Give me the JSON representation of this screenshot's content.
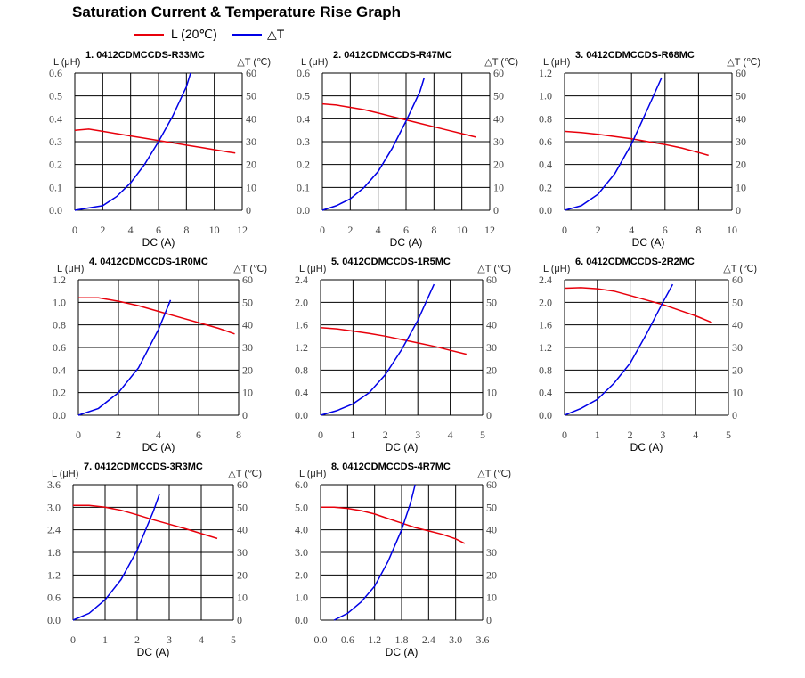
{
  "title": "Saturation Current & Temperature Rise  Graph",
  "legend": [
    {
      "label": "L (20℃)",
      "color": "#e8000b"
    },
    {
      "label": "△T",
      "color": "#0000e6"
    }
  ],
  "colors": {
    "inductance": "#e8000b",
    "temperature": "#0000e6",
    "grid": "#000000"
  },
  "chart_data": [
    {
      "type": "line",
      "title": "1. 0412CDMCCDS-R33MC",
      "xlabel": "DC (A)",
      "ylabel": "L (μH)",
      "y2label": "△T (℃)",
      "xlim": [
        0,
        12
      ],
      "ylim": [
        0,
        0.6
      ],
      "y2lim": [
        0,
        60
      ],
      "xticks": [
        "0",
        "2",
        "4",
        "6",
        "8",
        "10",
        "12"
      ],
      "yticks": [
        "0.0",
        "0.1",
        "0.2",
        "0.3",
        "0.4",
        "0.5",
        "0.6"
      ],
      "y2ticks": [
        "0",
        "10",
        "20",
        "30",
        "40",
        "50",
        "60"
      ],
      "grid": true,
      "series": [
        {
          "name": "L (20℃)",
          "axis": "left",
          "x": [
            0,
            1,
            2,
            3,
            4,
            5,
            6,
            7,
            8,
            9,
            10,
            11,
            11.5
          ],
          "y": [
            0.35,
            0.355,
            0.345,
            0.335,
            0.325,
            0.315,
            0.305,
            0.295,
            0.285,
            0.275,
            0.265,
            0.255,
            0.25
          ]
        },
        {
          "name": "△T",
          "axis": "right",
          "x": [
            0,
            1,
            2,
            3,
            4,
            5,
            6,
            7,
            8,
            8.3
          ],
          "y": [
            0,
            1,
            2,
            6,
            12,
            20,
            30,
            41,
            54,
            60
          ]
        }
      ]
    },
    {
      "type": "line",
      "title": "2. 0412CDMCCDS-R47MC",
      "xlabel": "DC (A)",
      "ylabel": "L (μH)",
      "y2label": "△T (℃)",
      "xlim": [
        0,
        12
      ],
      "ylim": [
        0,
        0.6
      ],
      "y2lim": [
        0,
        60
      ],
      "xticks": [
        "0",
        "2",
        "4",
        "6",
        "8",
        "10",
        "12"
      ],
      "yticks": [
        "0.0",
        "0.1",
        "0.2",
        "0.3",
        "0.4",
        "0.5",
        "0.6"
      ],
      "y2ticks": [
        "0",
        "10",
        "20",
        "30",
        "40",
        "50",
        "60"
      ],
      "grid": true,
      "series": [
        {
          "name": "L (20℃)",
          "axis": "left",
          "x": [
            0,
            1,
            2,
            3,
            4,
            5,
            6,
            7,
            8,
            9,
            10,
            11
          ],
          "y": [
            0.465,
            0.46,
            0.45,
            0.44,
            0.425,
            0.41,
            0.395,
            0.38,
            0.365,
            0.35,
            0.335,
            0.32
          ]
        },
        {
          "name": "△T",
          "axis": "right",
          "x": [
            0,
            1,
            2,
            3,
            4,
            5,
            6,
            7,
            7.3
          ],
          "y": [
            0,
            2,
            5,
            10,
            17,
            27,
            39,
            52,
            58
          ]
        }
      ]
    },
    {
      "type": "line",
      "title": "3. 0412CDMCCDS-R68MC",
      "xlabel": "DC (A)",
      "ylabel": "L (μH)",
      "y2label": "△T (℃)",
      "xlim": [
        0,
        10
      ],
      "ylim": [
        0,
        1.2
      ],
      "y2lim": [
        0,
        60
      ],
      "xticks": [
        "0",
        "2",
        "4",
        "6",
        "8",
        "10"
      ],
      "yticks": [
        "0.0",
        "0.2",
        "0.4",
        "0.6",
        "0.8",
        "1.0",
        "1.2"
      ],
      "y2ticks": [
        "0",
        "10",
        "20",
        "30",
        "40",
        "50",
        "60"
      ],
      "grid": true,
      "series": [
        {
          "name": "L (20℃)",
          "axis": "left",
          "x": [
            0,
            1,
            2,
            3,
            4,
            5,
            6,
            7,
            8,
            8.6
          ],
          "y": [
            0.69,
            0.68,
            0.665,
            0.645,
            0.625,
            0.6,
            0.575,
            0.545,
            0.505,
            0.48
          ]
        },
        {
          "name": "△T",
          "axis": "right",
          "x": [
            0,
            1,
            2,
            3,
            4,
            5,
            5.8
          ],
          "y": [
            0,
            2,
            7,
            16,
            29,
            45,
            58
          ]
        }
      ]
    },
    {
      "type": "line",
      "title": "4. 0412CDMCCDS-1R0MC",
      "xlabel": "DC (A)",
      "ylabel": "L (μH)",
      "y2label": "△T (℃)",
      "xlim": [
        0,
        8
      ],
      "ylim": [
        0,
        1.2
      ],
      "y2lim": [
        0,
        60
      ],
      "xticks": [
        "0",
        "2",
        "4",
        "6",
        "8"
      ],
      "yticks": [
        "0.0",
        "0.2",
        "0.4",
        "0.6",
        "0.8",
        "1.0",
        "1.2"
      ],
      "y2ticks": [
        "0",
        "10",
        "20",
        "30",
        "40",
        "50",
        "60"
      ],
      "grid": true,
      "series": [
        {
          "name": "L (20℃)",
          "axis": "left",
          "x": [
            0,
            1,
            2,
            3,
            4,
            5,
            6,
            7,
            7.8
          ],
          "y": [
            1.04,
            1.04,
            1.01,
            0.97,
            0.92,
            0.87,
            0.82,
            0.77,
            0.72
          ]
        },
        {
          "name": "△T",
          "axis": "right",
          "x": [
            0,
            1,
            2,
            3,
            4,
            4.6
          ],
          "y": [
            0,
            3,
            10,
            21,
            38,
            51
          ]
        }
      ]
    },
    {
      "type": "line",
      "title": "5. 0412CDMCCDS-1R5MC",
      "xlabel": "DC (A)",
      "ylabel": "L (μH)",
      "y2label": "△T (℃)",
      "xlim": [
        0,
        5
      ],
      "ylim": [
        0,
        2.4
      ],
      "y2lim": [
        0,
        60
      ],
      "xticks": [
        "0",
        "1",
        "2",
        "3",
        "4",
        "5"
      ],
      "yticks": [
        "0.0",
        "0.4",
        "0.8",
        "1.2",
        "1.6",
        "2.0",
        "2.4"
      ],
      "y2ticks": [
        "0",
        "10",
        "20",
        "30",
        "40",
        "50",
        "60"
      ],
      "grid": true,
      "series": [
        {
          "name": "L (20℃)",
          "axis": "left",
          "x": [
            0,
            0.5,
            1,
            1.5,
            2,
            2.5,
            3,
            3.5,
            4,
            4.5
          ],
          "y": [
            1.55,
            1.53,
            1.49,
            1.45,
            1.4,
            1.34,
            1.28,
            1.22,
            1.15,
            1.08
          ]
        },
        {
          "name": "△T",
          "axis": "right",
          "x": [
            0,
            0.5,
            1,
            1.5,
            2,
            2.5,
            3,
            3.5
          ],
          "y": [
            0,
            2,
            5,
            10,
            18,
            29,
            42,
            58
          ]
        }
      ]
    },
    {
      "type": "line",
      "title": "6. 0412CDMCCDS-2R2MC",
      "xlabel": "DC (A)",
      "ylabel": "L (μH)",
      "y2label": "△T (℃)",
      "xlim": [
        0,
        5
      ],
      "ylim": [
        0,
        2.4
      ],
      "y2lim": [
        0,
        60
      ],
      "xticks": [
        "0",
        "1",
        "2",
        "3",
        "4",
        "5"
      ],
      "yticks": [
        "0.0",
        "0.4",
        "0.8",
        "1.2",
        "1.6",
        "2.0",
        "2.4"
      ],
      "y2ticks": [
        "0",
        "10",
        "20",
        "30",
        "40",
        "50",
        "60"
      ],
      "grid": true,
      "series": [
        {
          "name": "L (20℃)",
          "axis": "left",
          "x": [
            0,
            0.5,
            1,
            1.5,
            2,
            2.5,
            3,
            3.5,
            4,
            4.5
          ],
          "y": [
            2.25,
            2.26,
            2.24,
            2.2,
            2.12,
            2.04,
            1.96,
            1.86,
            1.76,
            1.64
          ]
        },
        {
          "name": "△T",
          "axis": "right",
          "x": [
            0,
            0.5,
            1,
            1.5,
            2,
            2.5,
            3,
            3.3
          ],
          "y": [
            0,
            3,
            7,
            14,
            23,
            36,
            50,
            58
          ]
        }
      ]
    },
    {
      "type": "line",
      "title": "7. 0412CDMCCDS-3R3MC",
      "xlabel": "DC (A)",
      "ylabel": "L (μH)",
      "y2label": "△T (℃)",
      "xlim": [
        0,
        5
      ],
      "ylim": [
        0,
        3.6
      ],
      "y2lim": [
        0,
        60
      ],
      "xticks": [
        "0",
        "1",
        "2",
        "3",
        "4",
        "5"
      ],
      "yticks": [
        "0.0",
        "0.6",
        "1.2",
        "1.8",
        "2.4",
        "3.0",
        "3.6"
      ],
      "y2ticks": [
        "0",
        "10",
        "20",
        "30",
        "40",
        "50",
        "60"
      ],
      "grid": true,
      "series": [
        {
          "name": "L (20℃)",
          "axis": "left",
          "x": [
            0,
            0.5,
            1,
            1.5,
            2,
            2.5,
            3,
            3.5,
            4,
            4.5
          ],
          "y": [
            3.05,
            3.05,
            3.0,
            2.92,
            2.8,
            2.67,
            2.55,
            2.43,
            2.3,
            2.17
          ]
        },
        {
          "name": "△T",
          "axis": "right",
          "x": [
            0,
            0.5,
            1,
            1.5,
            2,
            2.5,
            2.7
          ],
          "y": [
            0,
            3,
            9,
            18,
            31,
            48,
            56
          ]
        }
      ]
    },
    {
      "type": "line",
      "title": "8. 0412CDMCCDS-4R7MC",
      "xlabel": "DC (A)",
      "ylabel": "L (μH)",
      "y2label": "△T (℃)",
      "xlim": [
        0,
        3.6
      ],
      "ylim": [
        0,
        6.0
      ],
      "y2lim": [
        0,
        60
      ],
      "xticks": [
        "0.0",
        "0.6",
        "1.2",
        "1.8",
        "2.4",
        "3.0",
        "3.6"
      ],
      "yticks": [
        "0.0",
        "1.0",
        "2.0",
        "3.0",
        "4.0",
        "5.0",
        "6.0"
      ],
      "y2ticks": [
        "0",
        "10",
        "20",
        "30",
        "40",
        "50",
        "60"
      ],
      "grid": true,
      "series": [
        {
          "name": "L (20℃)",
          "axis": "left",
          "x": [
            0,
            0.3,
            0.6,
            0.9,
            1.2,
            1.5,
            1.8,
            2.1,
            2.4,
            2.7,
            3.0,
            3.2
          ],
          "y": [
            5.0,
            5.0,
            4.95,
            4.85,
            4.7,
            4.5,
            4.3,
            4.1,
            3.95,
            3.8,
            3.6,
            3.4
          ]
        },
        {
          "name": "△T",
          "axis": "right",
          "x": [
            0.3,
            0.6,
            0.9,
            1.2,
            1.5,
            1.8,
            2.0,
            2.1
          ],
          "y": [
            0,
            3,
            8,
            15,
            26,
            40,
            52,
            60
          ]
        }
      ]
    }
  ]
}
